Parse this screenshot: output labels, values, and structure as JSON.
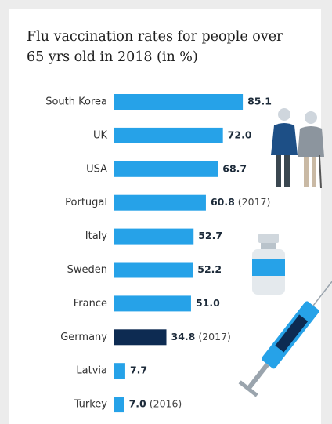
{
  "chart_data": {
    "type": "bar",
    "orientation": "horizontal",
    "title": [
      "Flu vaccination rates for people over",
      "65 yrs old in 2018 (in %)"
    ],
    "categories": [
      "South Korea",
      "UK",
      "USA",
      "Portugal",
      "Italy",
      "Sweden",
      "France",
      "Germany",
      "Latvia",
      "Turkey"
    ],
    "values": [
      85.1,
      72.0,
      68.7,
      60.8,
      52.7,
      52.2,
      51.0,
      34.8,
      7.7,
      7.0
    ],
    "value_labels": [
      "85.1",
      "72.0",
      "68.7",
      "60.8",
      "52.7",
      "52.2",
      "51.0",
      "34.8",
      "7.7",
      "7.0"
    ],
    "notes": [
      null,
      null,
      null,
      "(2017)",
      null,
      null,
      null,
      "(2017)",
      null,
      "(2016)"
    ],
    "colors": [
      "#26a2e8",
      "#26a2e8",
      "#26a2e8",
      "#26a2e8",
      "#26a2e8",
      "#26a2e8",
      "#26a2e8",
      "#0d2b52",
      "#26a2e8",
      "#26a2e8"
    ]
  }
}
